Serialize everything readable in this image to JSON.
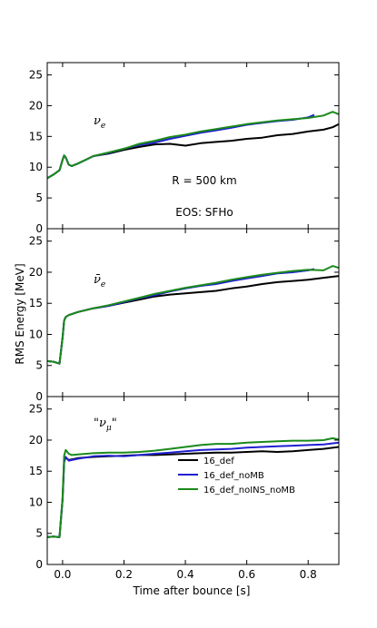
{
  "chart_data": [
    {
      "type": "line",
      "species_label": "ν_e",
      "annotations": [
        "R = 500 km",
        "EOS: SFHo"
      ],
      "xlim": [
        -0.05,
        0.9
      ],
      "ylim": [
        0,
        27
      ],
      "yticks": [
        0,
        5,
        10,
        15,
        20,
        25
      ],
      "grid": false,
      "series": [
        {
          "name": "16_def",
          "color": "#000000",
          "x": [
            -0.05,
            -0.03,
            -0.01,
            0.0,
            0.005,
            0.01,
            0.02,
            0.03,
            0.05,
            0.08,
            0.1,
            0.15,
            0.2,
            0.25,
            0.3,
            0.35,
            0.4,
            0.45,
            0.5,
            0.55,
            0.6,
            0.65,
            0.7,
            0.75,
            0.8,
            0.85,
            0.88,
            0.9
          ],
          "y": [
            8.2,
            8.8,
            9.5,
            11.2,
            11.9,
            11.6,
            10.4,
            10.2,
            10.6,
            11.3,
            11.8,
            12.2,
            12.8,
            13.3,
            13.7,
            13.8,
            13.5,
            13.9,
            14.1,
            14.3,
            14.6,
            14.8,
            15.2,
            15.4,
            15.8,
            16.1,
            16.5,
            17.0
          ]
        },
        {
          "name": "16_def_noMB",
          "color": "#1f1fd1",
          "x": [
            -0.05,
            -0.03,
            -0.01,
            0.0,
            0.005,
            0.01,
            0.02,
            0.03,
            0.05,
            0.08,
            0.1,
            0.15,
            0.2,
            0.25,
            0.3,
            0.35,
            0.4,
            0.45,
            0.5,
            0.55,
            0.6,
            0.65,
            0.7,
            0.75,
            0.8,
            0.82
          ],
          "y": [
            8.2,
            8.8,
            9.5,
            11.2,
            11.9,
            11.6,
            10.4,
            10.2,
            10.6,
            11.3,
            11.8,
            12.3,
            13.0,
            13.6,
            14.0,
            14.6,
            15.1,
            15.6,
            16.0,
            16.4,
            16.9,
            17.2,
            17.5,
            17.7,
            18.1,
            18.5
          ]
        },
        {
          "name": "16_def_noINS_noMB",
          "color": "#1b8a1b",
          "x": [
            -0.05,
            -0.03,
            -0.01,
            0.0,
            0.005,
            0.01,
            0.02,
            0.03,
            0.05,
            0.08,
            0.1,
            0.15,
            0.2,
            0.25,
            0.3,
            0.35,
            0.4,
            0.45,
            0.5,
            0.55,
            0.6,
            0.65,
            0.7,
            0.75,
            0.8,
            0.85,
            0.88,
            0.9
          ],
          "y": [
            8.2,
            8.8,
            9.5,
            11.2,
            11.9,
            11.6,
            10.4,
            10.2,
            10.6,
            11.3,
            11.8,
            12.4,
            13.0,
            13.8,
            14.3,
            14.9,
            15.3,
            15.8,
            16.2,
            16.6,
            17.0,
            17.3,
            17.6,
            17.8,
            18.0,
            18.4,
            19.0,
            18.6
          ]
        }
      ]
    },
    {
      "type": "line",
      "species_label": "ν̄_e",
      "annotations": [],
      "xlim": [
        -0.05,
        0.9
      ],
      "ylim": [
        0,
        27
      ],
      "yticks": [
        0,
        5,
        10,
        15,
        20,
        25
      ],
      "grid": false,
      "series": [
        {
          "name": "16_def",
          "color": "#000000",
          "x": [
            -0.05,
            -0.03,
            -0.01,
            0.0,
            0.005,
            0.01,
            0.02,
            0.05,
            0.1,
            0.15,
            0.2,
            0.25,
            0.3,
            0.35,
            0.4,
            0.45,
            0.5,
            0.55,
            0.6,
            0.65,
            0.7,
            0.75,
            0.8,
            0.85,
            0.9
          ],
          "y": [
            5.7,
            5.6,
            5.3,
            9.5,
            12.2,
            12.8,
            13.1,
            13.6,
            14.2,
            14.6,
            15.1,
            15.6,
            16.1,
            16.4,
            16.6,
            16.8,
            17.0,
            17.4,
            17.7,
            18.1,
            18.4,
            18.6,
            18.8,
            19.1,
            19.4
          ]
        },
        {
          "name": "16_def_noMB",
          "color": "#1f1fd1",
          "x": [
            -0.05,
            -0.03,
            -0.01,
            0.0,
            0.005,
            0.01,
            0.02,
            0.05,
            0.1,
            0.15,
            0.2,
            0.25,
            0.3,
            0.35,
            0.4,
            0.45,
            0.5,
            0.55,
            0.6,
            0.65,
            0.7,
            0.75,
            0.8,
            0.82
          ],
          "y": [
            5.7,
            5.6,
            5.3,
            9.5,
            12.2,
            12.8,
            13.1,
            13.6,
            14.2,
            14.6,
            15.2,
            15.8,
            16.3,
            16.9,
            17.4,
            17.8,
            18.1,
            18.6,
            19.0,
            19.4,
            19.8,
            20.0,
            20.3,
            20.5
          ]
        },
        {
          "name": "16_def_noINS_noMB",
          "color": "#1b8a1b",
          "x": [
            -0.05,
            -0.03,
            -0.01,
            0.0,
            0.005,
            0.01,
            0.02,
            0.05,
            0.1,
            0.15,
            0.2,
            0.25,
            0.3,
            0.35,
            0.4,
            0.45,
            0.5,
            0.55,
            0.6,
            0.65,
            0.7,
            0.75,
            0.8,
            0.85,
            0.88,
            0.9
          ],
          "y": [
            5.7,
            5.6,
            5.3,
            9.5,
            12.2,
            12.8,
            13.1,
            13.6,
            14.2,
            14.7,
            15.3,
            15.9,
            16.5,
            17.0,
            17.5,
            17.9,
            18.3,
            18.8,
            19.2,
            19.6,
            19.9,
            20.2,
            20.4,
            20.3,
            21.0,
            20.7
          ]
        }
      ]
    },
    {
      "type": "line",
      "species_label": "\"ν_μ\"",
      "annotations": [],
      "xlim": [
        -0.05,
        0.9
      ],
      "ylim": [
        0,
        27
      ],
      "yticks": [
        0,
        5,
        10,
        15,
        20,
        25
      ],
      "xticks": [
        0.0,
        0.2,
        0.4,
        0.6,
        0.8
      ],
      "xlabel": "Time after bounce [s]",
      "grid": false,
      "legend": {
        "placement": "lower-right",
        "entries": [
          "16_def",
          "16_def_noMB",
          "16_def_noINS_noMB"
        ]
      },
      "series": [
        {
          "name": "16_def",
          "color": "#000000",
          "x": [
            -0.05,
            -0.03,
            -0.01,
            0.0,
            0.005,
            0.01,
            0.02,
            0.03,
            0.05,
            0.1,
            0.15,
            0.2,
            0.25,
            0.3,
            0.35,
            0.4,
            0.45,
            0.5,
            0.55,
            0.6,
            0.65,
            0.7,
            0.75,
            0.8,
            0.85,
            0.9
          ],
          "y": [
            4.4,
            4.5,
            4.4,
            10.5,
            16.5,
            17.2,
            16.8,
            16.9,
            17.1,
            17.3,
            17.4,
            17.5,
            17.6,
            17.6,
            17.7,
            17.8,
            17.9,
            18.0,
            18.0,
            18.1,
            18.2,
            18.1,
            18.2,
            18.4,
            18.6,
            18.9
          ]
        },
        {
          "name": "16_def_noMB",
          "color": "#1f1fd1",
          "x": [
            -0.05,
            -0.03,
            -0.01,
            0.0,
            0.005,
            0.01,
            0.02,
            0.03,
            0.05,
            0.1,
            0.15,
            0.2,
            0.25,
            0.3,
            0.35,
            0.4,
            0.45,
            0.5,
            0.55,
            0.6,
            0.65,
            0.7,
            0.75,
            0.8,
            0.85,
            0.9
          ],
          "y": [
            4.4,
            4.5,
            4.4,
            10.5,
            16.5,
            17.3,
            16.7,
            16.8,
            17.0,
            17.4,
            17.5,
            17.4,
            17.6,
            17.8,
            18.0,
            18.2,
            18.4,
            18.5,
            18.6,
            18.8,
            18.9,
            19.0,
            19.1,
            19.2,
            19.3,
            19.6
          ]
        },
        {
          "name": "16_def_noINS_noMB",
          "color": "#1b8a1b",
          "x": [
            -0.05,
            -0.03,
            -0.01,
            0.0,
            0.005,
            0.01,
            0.02,
            0.03,
            0.05,
            0.1,
            0.15,
            0.2,
            0.25,
            0.3,
            0.35,
            0.4,
            0.45,
            0.5,
            0.55,
            0.6,
            0.65,
            0.7,
            0.75,
            0.8,
            0.85,
            0.88,
            0.9
          ],
          "y": [
            4.4,
            4.5,
            4.4,
            10.8,
            17.5,
            18.4,
            17.8,
            17.6,
            17.7,
            17.9,
            18.0,
            18.0,
            18.1,
            18.3,
            18.6,
            18.9,
            19.2,
            19.4,
            19.4,
            19.6,
            19.7,
            19.8,
            19.9,
            19.9,
            20.0,
            20.3,
            20.1
          ]
        }
      ]
    }
  ],
  "shared": {
    "ylabel": "RMS Energy [MeV]",
    "xlabel": "Time after bounce [s]"
  }
}
